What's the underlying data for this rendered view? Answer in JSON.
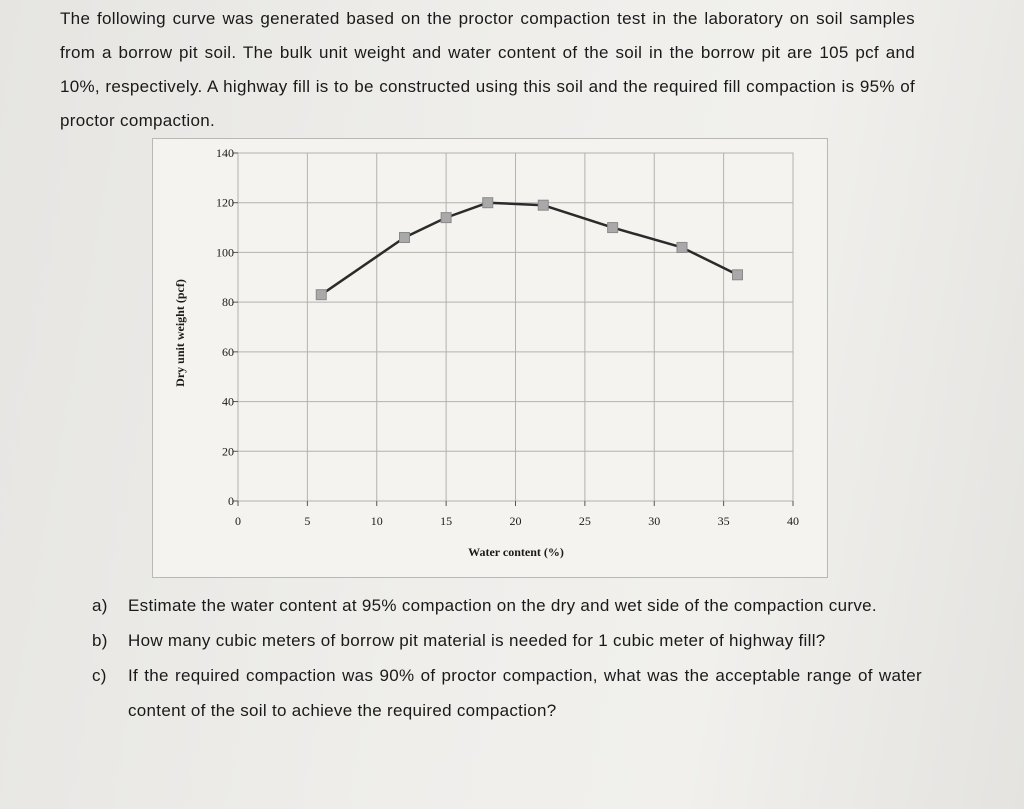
{
  "intro_text": "The following curve was generated based on the proctor compaction test in the laboratory on soil samples from a borrow pit soil. The bulk unit weight and water content of the soil in the borrow pit are 105 pcf and 10%, respectively. A highway fill is to be constructed using this soil and the required fill compaction is 95% of proctor compaction.",
  "chart_data": {
    "type": "line",
    "title": "",
    "xlabel": "Water content (%)",
    "ylabel": "Dry unit weight (pcf)",
    "xlim": [
      0,
      40
    ],
    "ylim": [
      0,
      140
    ],
    "x_ticks": [
      0,
      5,
      10,
      15,
      20,
      25,
      30,
      35,
      40
    ],
    "y_ticks": [
      0,
      20,
      40,
      60,
      80,
      100,
      120,
      140
    ],
    "grid": true,
    "legend": "none",
    "marker": "square",
    "line_color": "#2b2b2b",
    "marker_color": "#a9a9a9",
    "series": [
      {
        "x": [
          6,
          12,
          15,
          18,
          22,
          27,
          32,
          36
        ],
        "y": [
          83,
          106,
          114,
          120,
          119,
          110,
          102,
          91
        ]
      }
    ]
  },
  "questions": [
    {
      "letter": "a)",
      "text": "Estimate the water content at 95% compaction on the dry and wet side of the compaction curve."
    },
    {
      "letter": "b)",
      "text": "How many cubic meters of borrow pit material is needed for 1 cubic meter of highway fill?"
    },
    {
      "letter": "c)",
      "text": "If the required compaction was 90% of proctor compaction, what was the acceptable range of water content of the soil to achieve the required compaction?"
    }
  ]
}
